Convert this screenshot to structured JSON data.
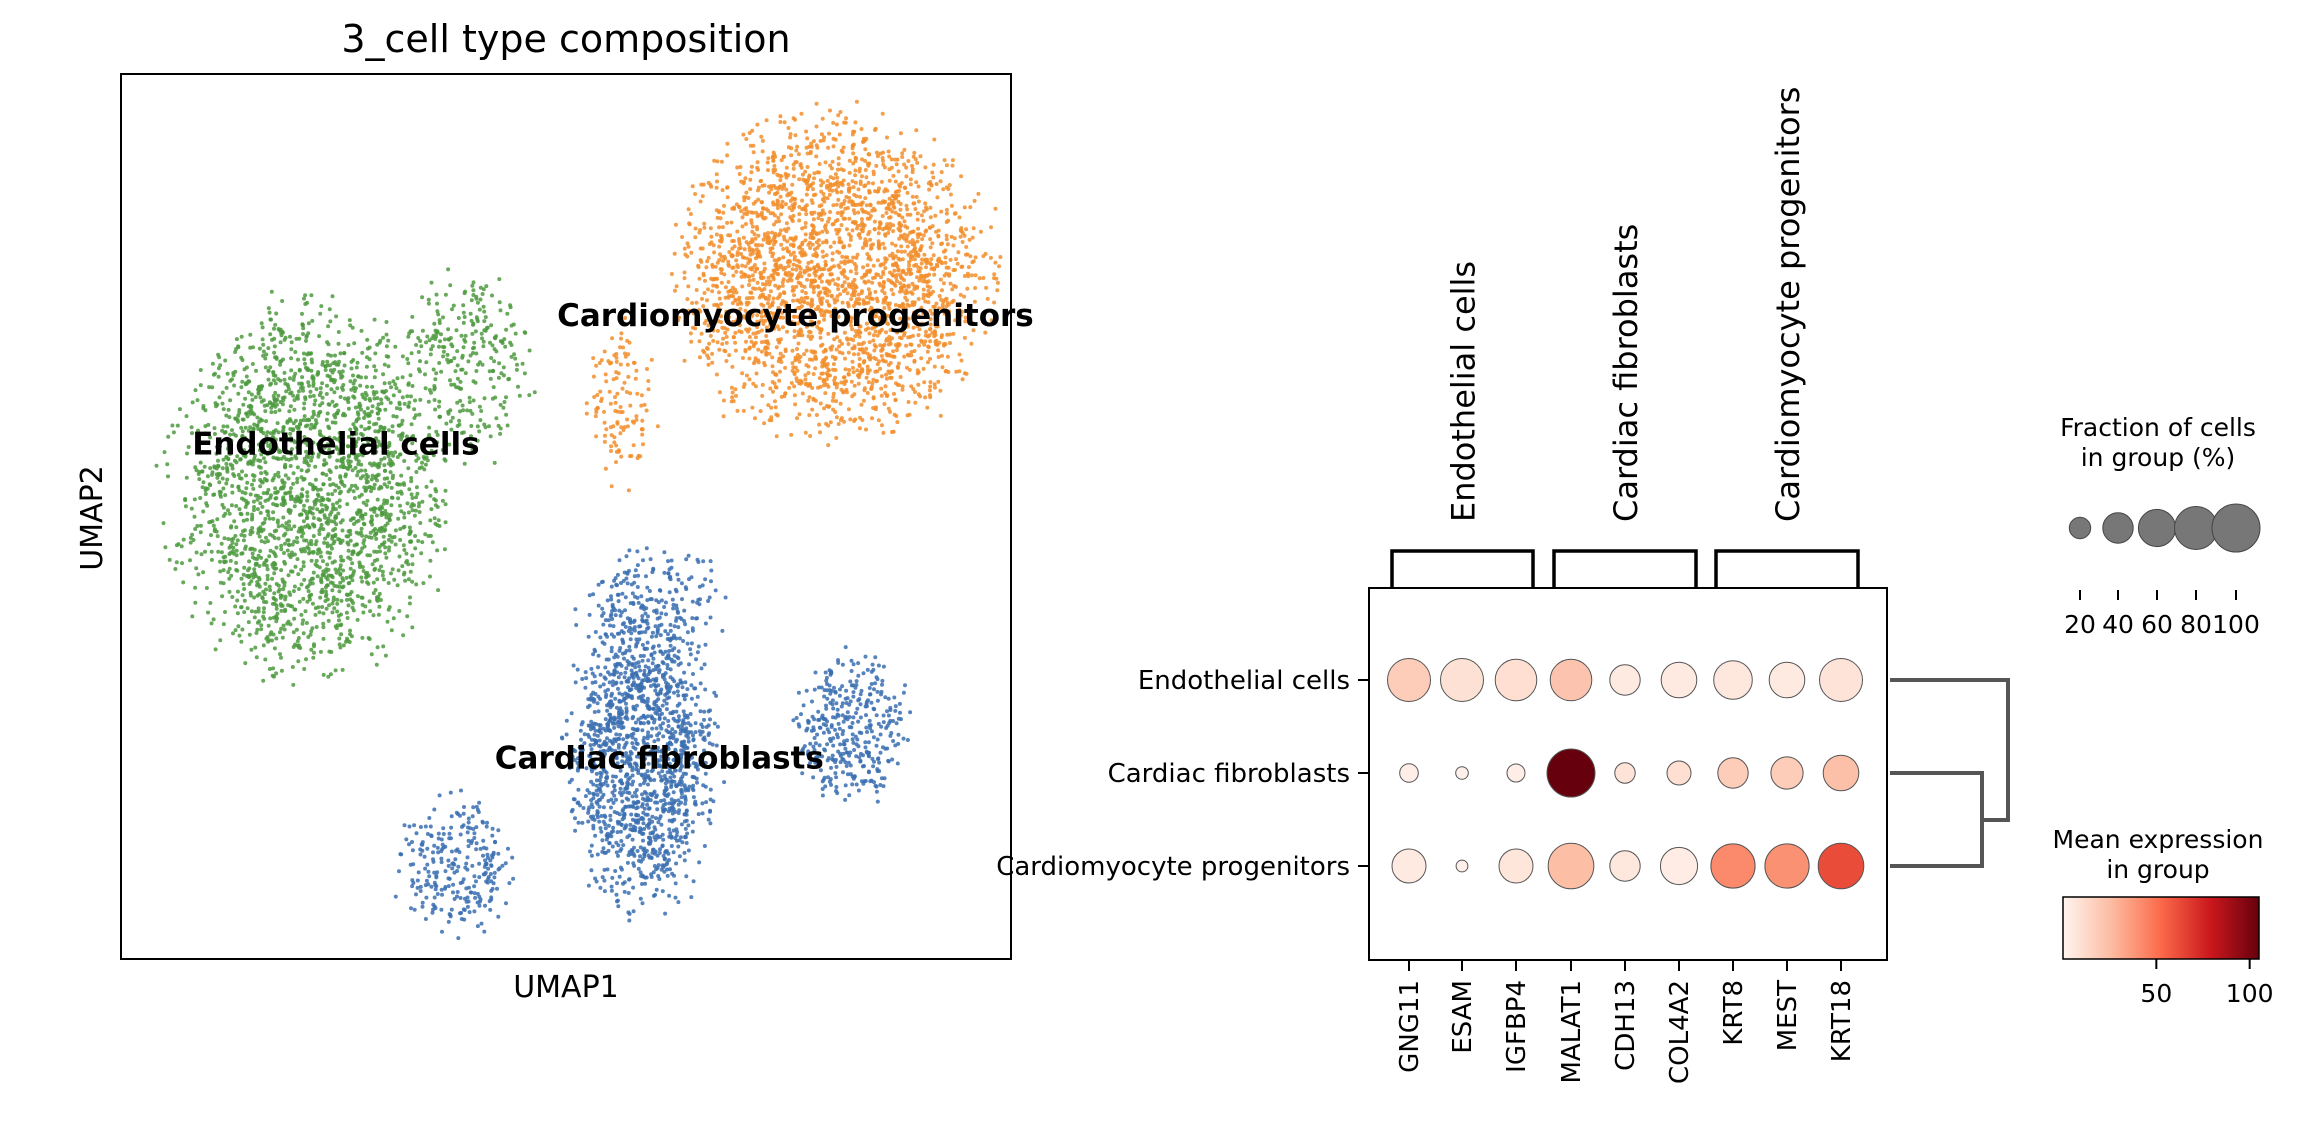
{
  "chart_data": [
    {
      "type": "scatter",
      "title": "3_cell type composition",
      "xlabel": "UMAP1",
      "ylabel": "UMAP2",
      "grid": false,
      "xlim": [
        0,
        10
      ],
      "ylim": [
        0,
        10
      ],
      "clusters": [
        {
          "name": "Endothelial cells",
          "color": "#4e9a3f",
          "label_pos": [
            0.8,
            5.7
          ],
          "blobs": [
            {
              "cx": 2.1,
              "cy": 5.3,
              "rx": 1.75,
              "ry": 2.35,
              "n": 2200
            },
            {
              "cx": 3.9,
              "cy": 6.7,
              "rx": 0.85,
              "ry": 1.2,
              "n": 280
            }
          ]
        },
        {
          "name": "Cardiomyocyte progenitors",
          "color": "#f28e2b",
          "label_pos": [
            4.9,
            7.15
          ],
          "blobs": [
            {
              "cx": 8.0,
              "cy": 7.7,
              "rx": 2.0,
              "ry": 2.05,
              "n": 2500
            },
            {
              "cx": 5.6,
              "cy": 6.3,
              "rx": 0.45,
              "ry": 1.1,
              "n": 120
            }
          ]
        },
        {
          "name": "Cardiac fibroblasts",
          "color": "#3a6fb0",
          "label_pos": [
            4.2,
            2.15
          ],
          "blobs": [
            {
              "cx": 5.85,
              "cy": 2.3,
              "rx": 0.95,
              "ry": 2.0,
              "n": 1400
            },
            {
              "cx": 8.2,
              "cy": 2.6,
              "rx": 0.75,
              "ry": 1.0,
              "n": 360
            },
            {
              "cx": 3.75,
              "cy": 1.05,
              "rx": 0.75,
              "ry": 0.9,
              "n": 260
            },
            {
              "cx": 6.0,
              "cy": 4.0,
              "rx": 1.0,
              "ry": 0.8,
              "n": 200
            }
          ]
        }
      ]
    },
    {
      "type": "dotplot",
      "rows": [
        "Endothelial cells",
        "Cardiac fibroblasts",
        "Cardiomyocyte progenitors"
      ],
      "genes": [
        "GNG11",
        "ESAM",
        "IGFBP4",
        "MALAT1",
        "CDH13",
        "COL4A2",
        "KRT8",
        "MEST",
        "KRT18"
      ],
      "gene_groups": [
        {
          "label": "Endothelial cells",
          "start": 0,
          "end": 2
        },
        {
          "label": "Cardiac fibroblasts",
          "start": 3,
          "end": 5
        },
        {
          "label": "Cardiomyocyte progenitors",
          "start": 6,
          "end": 8
        }
      ],
      "fraction_pct": [
        [
          80,
          80,
          75,
          75,
          40,
          55,
          65,
          55,
          80
        ],
        [
          15,
          7,
          14,
          100,
          18,
          25,
          40,
          45,
          55
        ],
        [
          50,
          6,
          50,
          90,
          40,
          60,
          85,
          85,
          90
        ]
      ],
      "mean_expr": [
        [
          18,
          9,
          10,
          22,
          5,
          5,
          6,
          5,
          8
        ],
        [
          3,
          2,
          3,
          105,
          8,
          10,
          18,
          18,
          24
        ],
        [
          5,
          2,
          7,
          25,
          6,
          4,
          42,
          40,
          62
        ]
      ],
      "dendrogram": {
        "leaves": [
          "Endothelial cells",
          "Cardiac fibroblasts",
          "Cardiomyocyte progenitors"
        ],
        "merge_first": [
          "Cardiac fibroblasts",
          "Cardiomyocyte progenitors"
        ]
      },
      "size_legend": {
        "title": [
          "Fraction of cells",
          "in group (%)"
        ],
        "values": [
          20,
          40,
          60,
          80,
          100
        ],
        "tick_labels": [
          "20",
          "40",
          "60",
          "80",
          "100"
        ]
      },
      "color_legend": {
        "title": [
          "Mean expression",
          "in group"
        ],
        "range": [
          0,
          105
        ],
        "ticks": [
          50,
          100
        ],
        "tick_labels": [
          "50",
          "100"
        ],
        "colormap": "Reds",
        "stops": [
          "#fff5f0",
          "#fcbba1",
          "#fb6a4a",
          "#cb181d",
          "#67000d"
        ]
      }
    }
  ]
}
